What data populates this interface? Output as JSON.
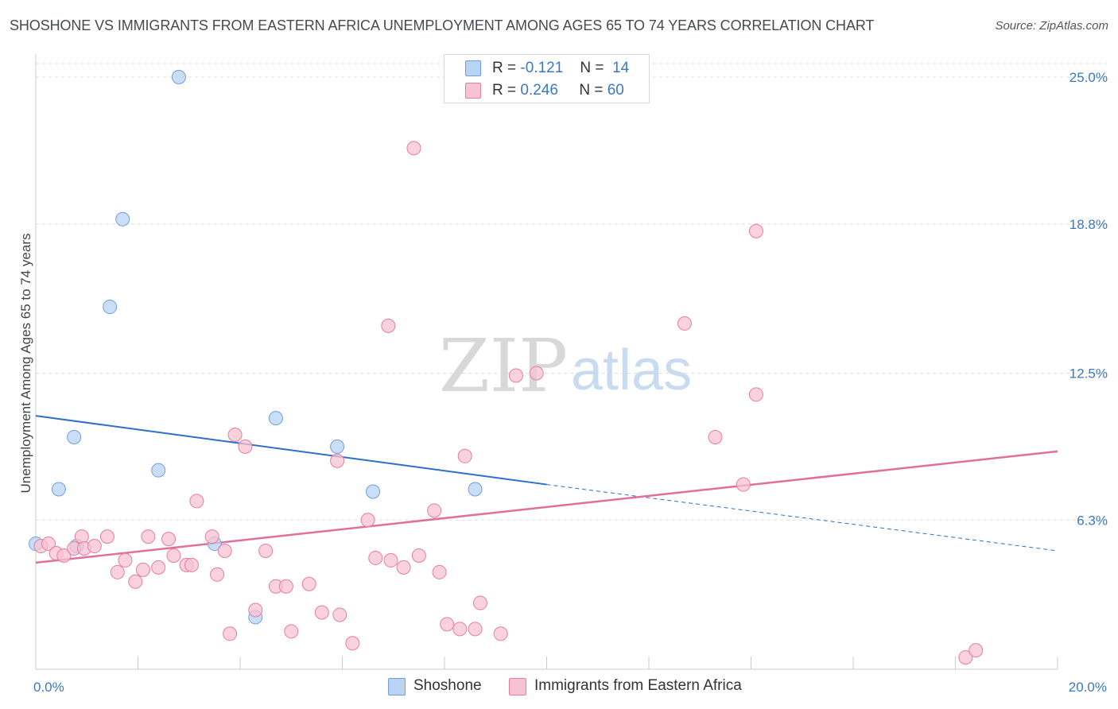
{
  "title": "SHOSHONE VS IMMIGRANTS FROM EASTERN AFRICA UNEMPLOYMENT AMONG AGES 65 TO 74 YEARS CORRELATION CHART",
  "source": "Source: ZipAtlas.com",
  "watermark": {
    "zip": "ZIP",
    "atlas": "atlas"
  },
  "legend": {
    "r_label": "R =",
    "n_label": "N =",
    "rows": [
      {
        "r": "-0.121",
        "n": "14"
      },
      {
        "r": "0.246",
        "n": "60"
      }
    ]
  },
  "colors": {
    "shoshone_fill": "#b9d3f4",
    "shoshone_stroke": "#6e9fd9",
    "shoshone_line": "#2d6fcc",
    "eastern_africa_fill": "#f7c3d3",
    "eastern_africa_stroke": "#e67ea0",
    "eastern_africa_line": "#e0709a",
    "tick_label": "#3b78c4",
    "grid": "#dddddd"
  },
  "chart_data": {
    "type": "scatter",
    "xlabel": "",
    "ylabel": "Unemployment Among Ages 65 to 74 years",
    "xlim": [
      0,
      20
    ],
    "ylim": [
      0,
      25.5
    ],
    "x_tick_labels": [
      {
        "x": 0,
        "label": "0.0%"
      },
      {
        "x": 20,
        "label": "20.0%"
      }
    ],
    "x_minor_ticks": [
      2,
      4,
      6,
      8,
      10,
      12,
      14,
      16,
      18,
      20
    ],
    "y_ticks": [
      {
        "y": 6.3,
        "label": "6.3%"
      },
      {
        "y": 12.5,
        "label": "12.5%"
      },
      {
        "y": 18.8,
        "label": "18.8%"
      },
      {
        "y": 25.0,
        "label": "25.0%"
      }
    ],
    "grid": true,
    "legend_position": "top-center",
    "series": [
      {
        "name": "Shoshone",
        "points": [
          [
            0.0,
            5.3
          ],
          [
            0.45,
            7.6
          ],
          [
            0.75,
            9.8
          ],
          [
            0.8,
            5.2
          ],
          [
            1.45,
            15.3
          ],
          [
            1.7,
            19.0
          ],
          [
            2.4,
            8.4
          ],
          [
            2.8,
            25.0
          ],
          [
            3.5,
            5.3
          ],
          [
            4.3,
            2.2
          ],
          [
            4.7,
            10.6
          ],
          [
            5.9,
            9.4
          ],
          [
            6.6,
            7.5
          ],
          [
            8.6,
            7.6
          ]
        ],
        "trend": {
          "x0": 0,
          "y0": 10.7,
          "x1": 10,
          "y1": 7.8,
          "dash_x1": 20,
          "dash_y1": 5.0
        }
      },
      {
        "name": "Immigrants from Eastern Africa",
        "points": [
          [
            0.1,
            5.2
          ],
          [
            0.25,
            5.3
          ],
          [
            0.4,
            4.9
          ],
          [
            0.55,
            4.8
          ],
          [
            0.75,
            5.1
          ],
          [
            0.9,
            5.6
          ],
          [
            0.95,
            5.1
          ],
          [
            1.15,
            5.2
          ],
          [
            1.4,
            5.6
          ],
          [
            1.6,
            4.1
          ],
          [
            1.75,
            4.6
          ],
          [
            1.95,
            3.7
          ],
          [
            2.1,
            4.2
          ],
          [
            2.2,
            5.6
          ],
          [
            2.4,
            4.3
          ],
          [
            2.6,
            5.5
          ],
          [
            2.7,
            4.8
          ],
          [
            2.95,
            4.4
          ],
          [
            3.05,
            4.4
          ],
          [
            3.15,
            7.1
          ],
          [
            3.45,
            5.6
          ],
          [
            3.55,
            4.0
          ],
          [
            3.7,
            5.0
          ],
          [
            3.8,
            1.5
          ],
          [
            3.9,
            9.9
          ],
          [
            4.1,
            9.4
          ],
          [
            4.3,
            2.5
          ],
          [
            4.5,
            5.0
          ],
          [
            4.7,
            3.5
          ],
          [
            4.9,
            3.5
          ],
          [
            5.0,
            1.6
          ],
          [
            5.35,
            3.6
          ],
          [
            5.6,
            2.4
          ],
          [
            5.9,
            8.8
          ],
          [
            5.95,
            2.3
          ],
          [
            6.2,
            1.1
          ],
          [
            6.5,
            6.3
          ],
          [
            6.65,
            4.7
          ],
          [
            6.9,
            14.5
          ],
          [
            6.95,
            4.6
          ],
          [
            7.2,
            4.3
          ],
          [
            7.4,
            22.0
          ],
          [
            7.5,
            4.8
          ],
          [
            7.8,
            6.7
          ],
          [
            7.9,
            4.1
          ],
          [
            8.05,
            1.9
          ],
          [
            8.3,
            1.7
          ],
          [
            8.4,
            9.0
          ],
          [
            8.6,
            1.7
          ],
          [
            8.7,
            2.8
          ],
          [
            9.1,
            1.5
          ],
          [
            9.4,
            12.4
          ],
          [
            9.8,
            12.5
          ],
          [
            12.7,
            14.6
          ],
          [
            13.3,
            9.8
          ],
          [
            13.85,
            7.8
          ],
          [
            14.1,
            11.6
          ],
          [
            14.1,
            18.5
          ],
          [
            18.2,
            0.5
          ],
          [
            18.4,
            0.8
          ]
        ],
        "trend": {
          "x0": 0,
          "y0": 4.5,
          "x1": 20,
          "y1": 9.2
        }
      }
    ]
  }
}
